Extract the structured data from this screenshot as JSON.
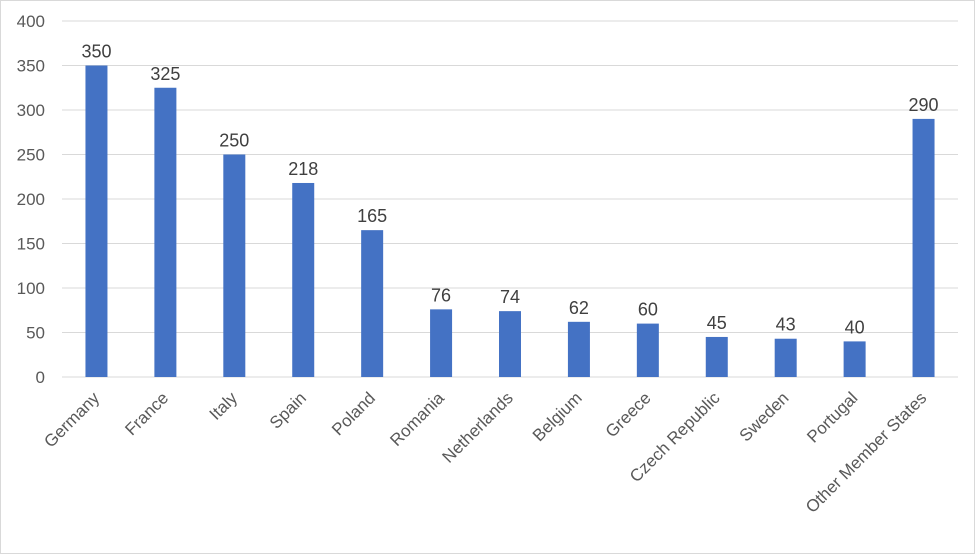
{
  "chart_data": {
    "type": "bar",
    "title": "",
    "xlabel": "",
    "ylabel": "",
    "categories": [
      "Germany",
      "France",
      "Italy",
      "Spain",
      "Poland",
      "Romania",
      "Netherlands",
      "Belgium",
      "Greece",
      "Czech Republic",
      "Sweden",
      "Portugal",
      "Other Member States"
    ],
    "values": [
      350,
      325,
      250,
      218,
      165,
      76,
      74,
      62,
      60,
      45,
      43,
      40,
      290
    ],
    "ylim": [
      0,
      400
    ],
    "yticks": [
      0,
      50,
      100,
      150,
      200,
      250,
      300,
      350,
      400
    ],
    "grid": true,
    "legend": "none",
    "bar_color": "#4472c4",
    "data_labels": true
  }
}
